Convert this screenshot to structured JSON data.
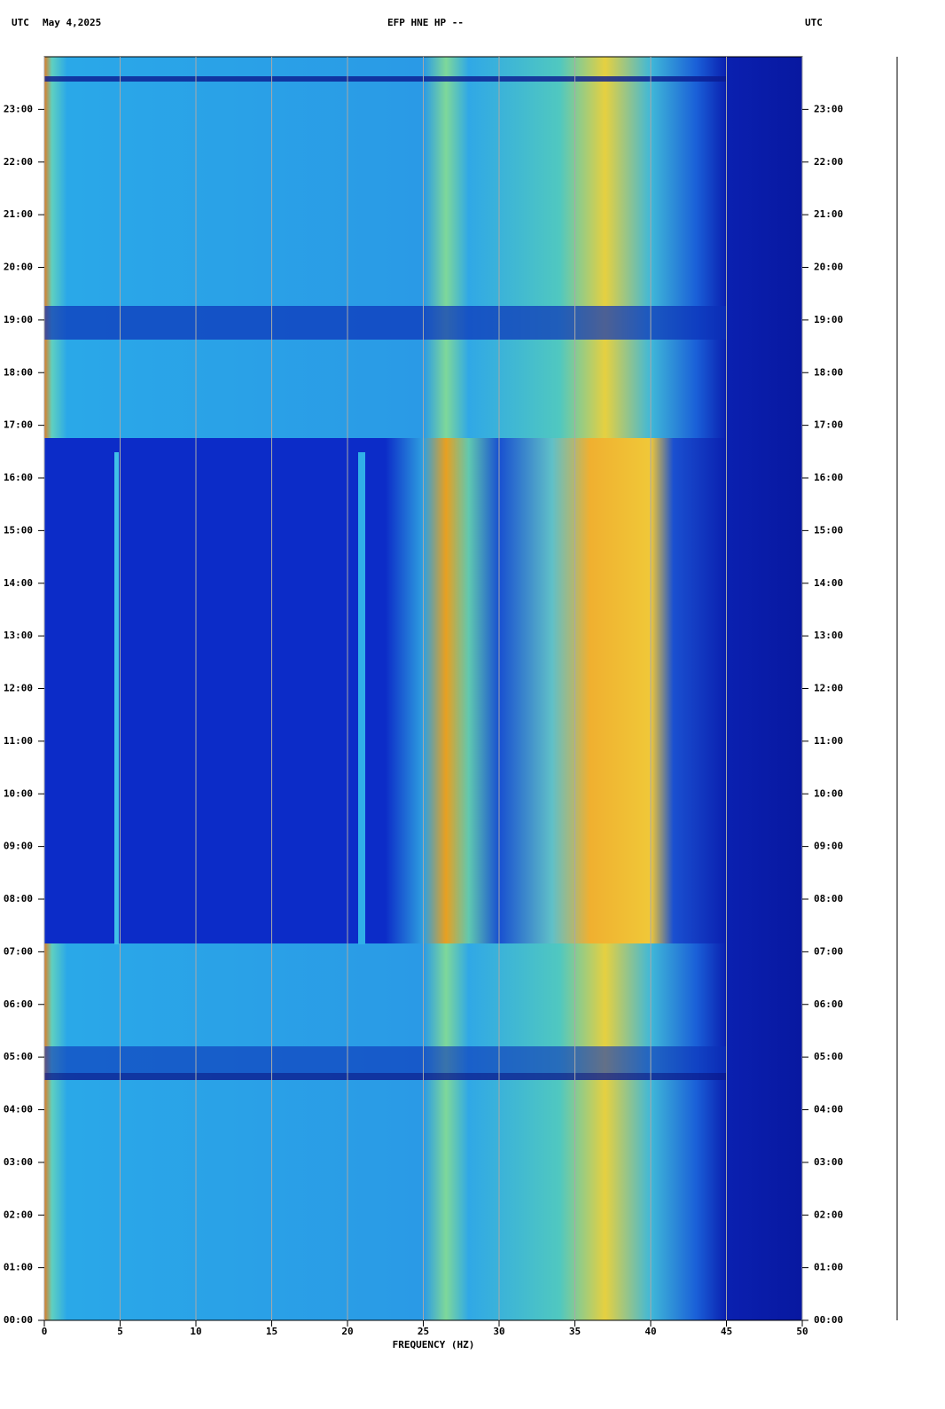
{
  "chart_data": {
    "type": "spectrogram",
    "title": "EFP HNE HP --",
    "date": "May 4,2025",
    "time_zone_label": "UTC",
    "x_label": "FREQUENCY (HZ)",
    "xlim": [
      0,
      50
    ],
    "xticks": [
      0,
      5,
      10,
      15,
      20,
      25,
      30,
      35,
      40,
      45,
      50
    ],
    "ylim": [
      0,
      24
    ],
    "yticks": [
      {
        "value": 0,
        "label": "00:00"
      },
      {
        "value": 1,
        "label": "01:00"
      },
      {
        "value": 2,
        "label": "02:00"
      },
      {
        "value": 3,
        "label": "03:00"
      },
      {
        "value": 4,
        "label": "04:00"
      },
      {
        "value": 5,
        "label": "05:00"
      },
      {
        "value": 6,
        "label": "06:00"
      },
      {
        "value": 7,
        "label": "07:00"
      },
      {
        "value": 8,
        "label": "08:00"
      },
      {
        "value": 9,
        "label": "09:00"
      },
      {
        "value": 10,
        "label": "10:00"
      },
      {
        "value": 11,
        "label": "11:00"
      },
      {
        "value": 12,
        "label": "12:00"
      },
      {
        "value": 13,
        "label": "13:00"
      },
      {
        "value": 14,
        "label": "14:00"
      },
      {
        "value": 15,
        "label": "15:00"
      },
      {
        "value": 16,
        "label": "16:00"
      },
      {
        "value": 17,
        "label": "17:00"
      },
      {
        "value": 18,
        "label": "18:00"
      },
      {
        "value": 19,
        "label": "19:00"
      },
      {
        "value": 20,
        "label": "20:00"
      },
      {
        "value": 21,
        "label": "21:00"
      },
      {
        "value": 22,
        "label": "22:00"
      },
      {
        "value": 23,
        "label": "23:00"
      }
    ],
    "grid": true,
    "grid_color": "#a8a8a8"
  }
}
